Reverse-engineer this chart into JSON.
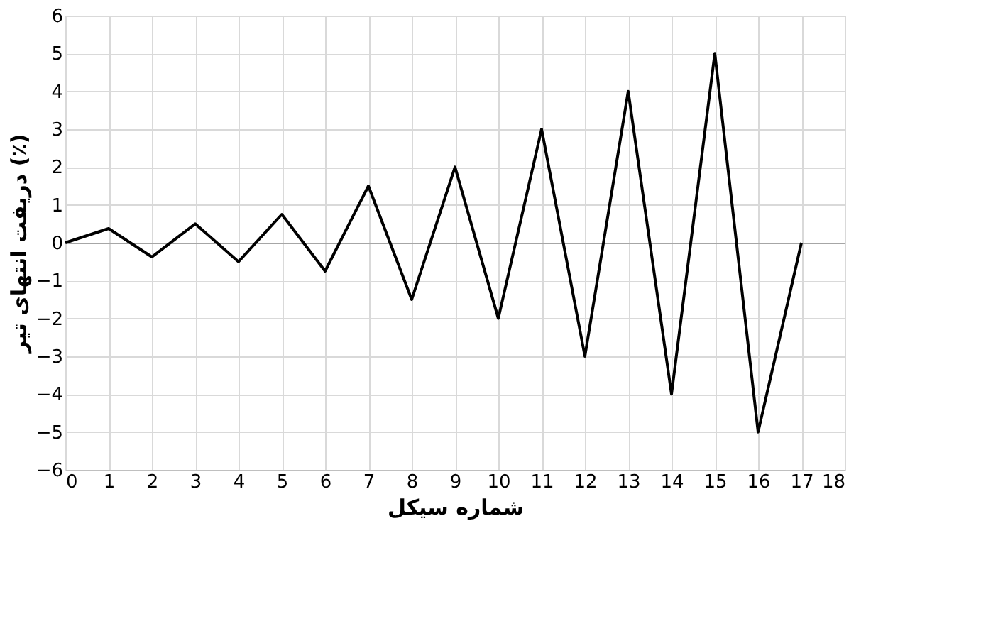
{
  "chart_data": {
    "type": "line",
    "xlabel": "شماره سیکل",
    "ylabel": "دریفت انتهای تیر (٪)",
    "x": [
      0,
      1,
      2,
      3,
      4,
      5,
      6,
      7,
      8,
      9,
      10,
      11,
      12,
      13,
      14,
      15,
      16,
      17
    ],
    "series": [
      {
        "color": "#000000",
        "values": [
          0,
          0.375,
          -0.375,
          0.5,
          -0.5,
          0.75,
          -0.75,
          1.5,
          -1.5,
          2,
          -2,
          3,
          -3,
          4,
          -4,
          5,
          -5,
          0
        ]
      }
    ],
    "xlim": [
      0,
      18
    ],
    "xticks": [
      0,
      1,
      2,
      3,
      4,
      5,
      6,
      7,
      8,
      9,
      10,
      11,
      12,
      13,
      14,
      15,
      16,
      17,
      18
    ],
    "ylim": [
      -6,
      6
    ],
    "yticks": [
      -6,
      -5,
      -4,
      -3,
      -2,
      -1,
      0,
      1,
      2,
      3,
      4,
      5,
      6
    ],
    "grid": true,
    "legend": false,
    "marker": "none",
    "line_style": "solid"
  }
}
